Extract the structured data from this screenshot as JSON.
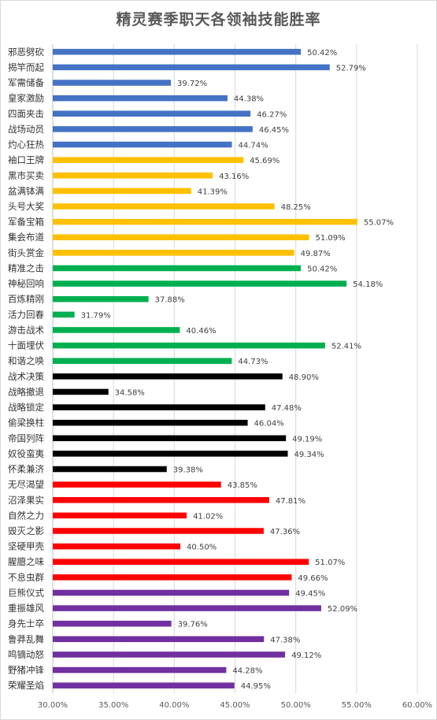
{
  "chart_data": {
    "type": "bar",
    "orientation": "horizontal",
    "title": "精灵赛季职天各领袖技能胜率",
    "xlim": [
      0.3,
      0.6
    ],
    "xticks": [
      "30.00%",
      "35.00%",
      "40.00%",
      "45.00%",
      "50.00%",
      "55.00%",
      "60.00%"
    ],
    "grid": true,
    "categories": [
      "邪恶劈砍",
      "揭竿而起",
      "军需储备",
      "皇家激励",
      "四面夹击",
      "战场动员",
      "灼心狂热",
      "袖口王牌",
      "黑市买卖",
      "盆满钵满",
      "头号大奖",
      "军备宝箱",
      "集会布道",
      "街头赏金",
      "精准之击",
      "神秘回响",
      "百炼精刚",
      "活力回春",
      "游击战术",
      "十面埋伏",
      "和谐之唤",
      "战术决策",
      "战略撤退",
      "战略锁定",
      "偷梁换柱",
      "帝国列阵",
      "奴役蛮夷",
      "怀柔兼济",
      "无尽渴望",
      "沼泽果实",
      "自然之力",
      "毁灭之影",
      "坚硬甲壳",
      "腥膻之味",
      "不息虫群",
      "巨熊仪式",
      "重振雄风",
      "身先士卒",
      "鲁莽乱舞",
      "鸣镝动怒",
      "野猪冲锋",
      "荣耀圣焰"
    ],
    "values": [
      0.5042,
      0.5279,
      0.3972,
      0.4438,
      0.4627,
      0.4645,
      0.4474,
      0.4569,
      0.4316,
      0.4139,
      0.4825,
      0.5507,
      0.5109,
      0.4987,
      0.5042,
      0.5418,
      0.3788,
      0.3179,
      0.4046,
      0.5241,
      0.4473,
      0.489,
      0.3458,
      0.4748,
      0.4604,
      0.4919,
      0.4934,
      0.3938,
      0.4385,
      0.4781,
      0.4102,
      0.4736,
      0.405,
      0.5107,
      0.4966,
      0.4945,
      0.5209,
      0.3976,
      0.4738,
      0.4912,
      0.4428,
      0.4495
    ],
    "value_labels": [
      "50.42%",
      "52.79%",
      "39.72%",
      "44.38%",
      "46.27%",
      "46.45%",
      "44.74%",
      "45.69%",
      "43.16%",
      "41.39%",
      "48.25%",
      "55.07%",
      "51.09%",
      "49.87%",
      "50.42%",
      "54.18%",
      "37.88%",
      "31.79%",
      "40.46%",
      "52.41%",
      "44.73%",
      "48.90%",
      "34.58%",
      "47.48%",
      "46.04%",
      "49.19%",
      "49.34%",
      "39.38%",
      "43.85%",
      "47.81%",
      "41.02%",
      "47.36%",
      "40.50%",
      "51.07%",
      "49.66%",
      "49.45%",
      "52.09%",
      "39.76%",
      "47.38%",
      "49.12%",
      "44.28%",
      "44.95%"
    ],
    "bar_colors": [
      "#4472c4",
      "#4472c4",
      "#4472c4",
      "#4472c4",
      "#4472c4",
      "#4472c4",
      "#4472c4",
      "#ffc000",
      "#ffc000",
      "#ffc000",
      "#ffc000",
      "#ffc000",
      "#ffc000",
      "#ffc000",
      "#00b050",
      "#00b050",
      "#00b050",
      "#00b050",
      "#00b050",
      "#00b050",
      "#00b050",
      "#000000",
      "#000000",
      "#000000",
      "#000000",
      "#000000",
      "#000000",
      "#000000",
      "#ff0000",
      "#ff0000",
      "#ff0000",
      "#ff0000",
      "#ff0000",
      "#ff0000",
      "#ff0000",
      "#7030a0",
      "#7030a0",
      "#7030a0",
      "#7030a0",
      "#7030a0",
      "#7030a0",
      "#7030a0"
    ]
  }
}
